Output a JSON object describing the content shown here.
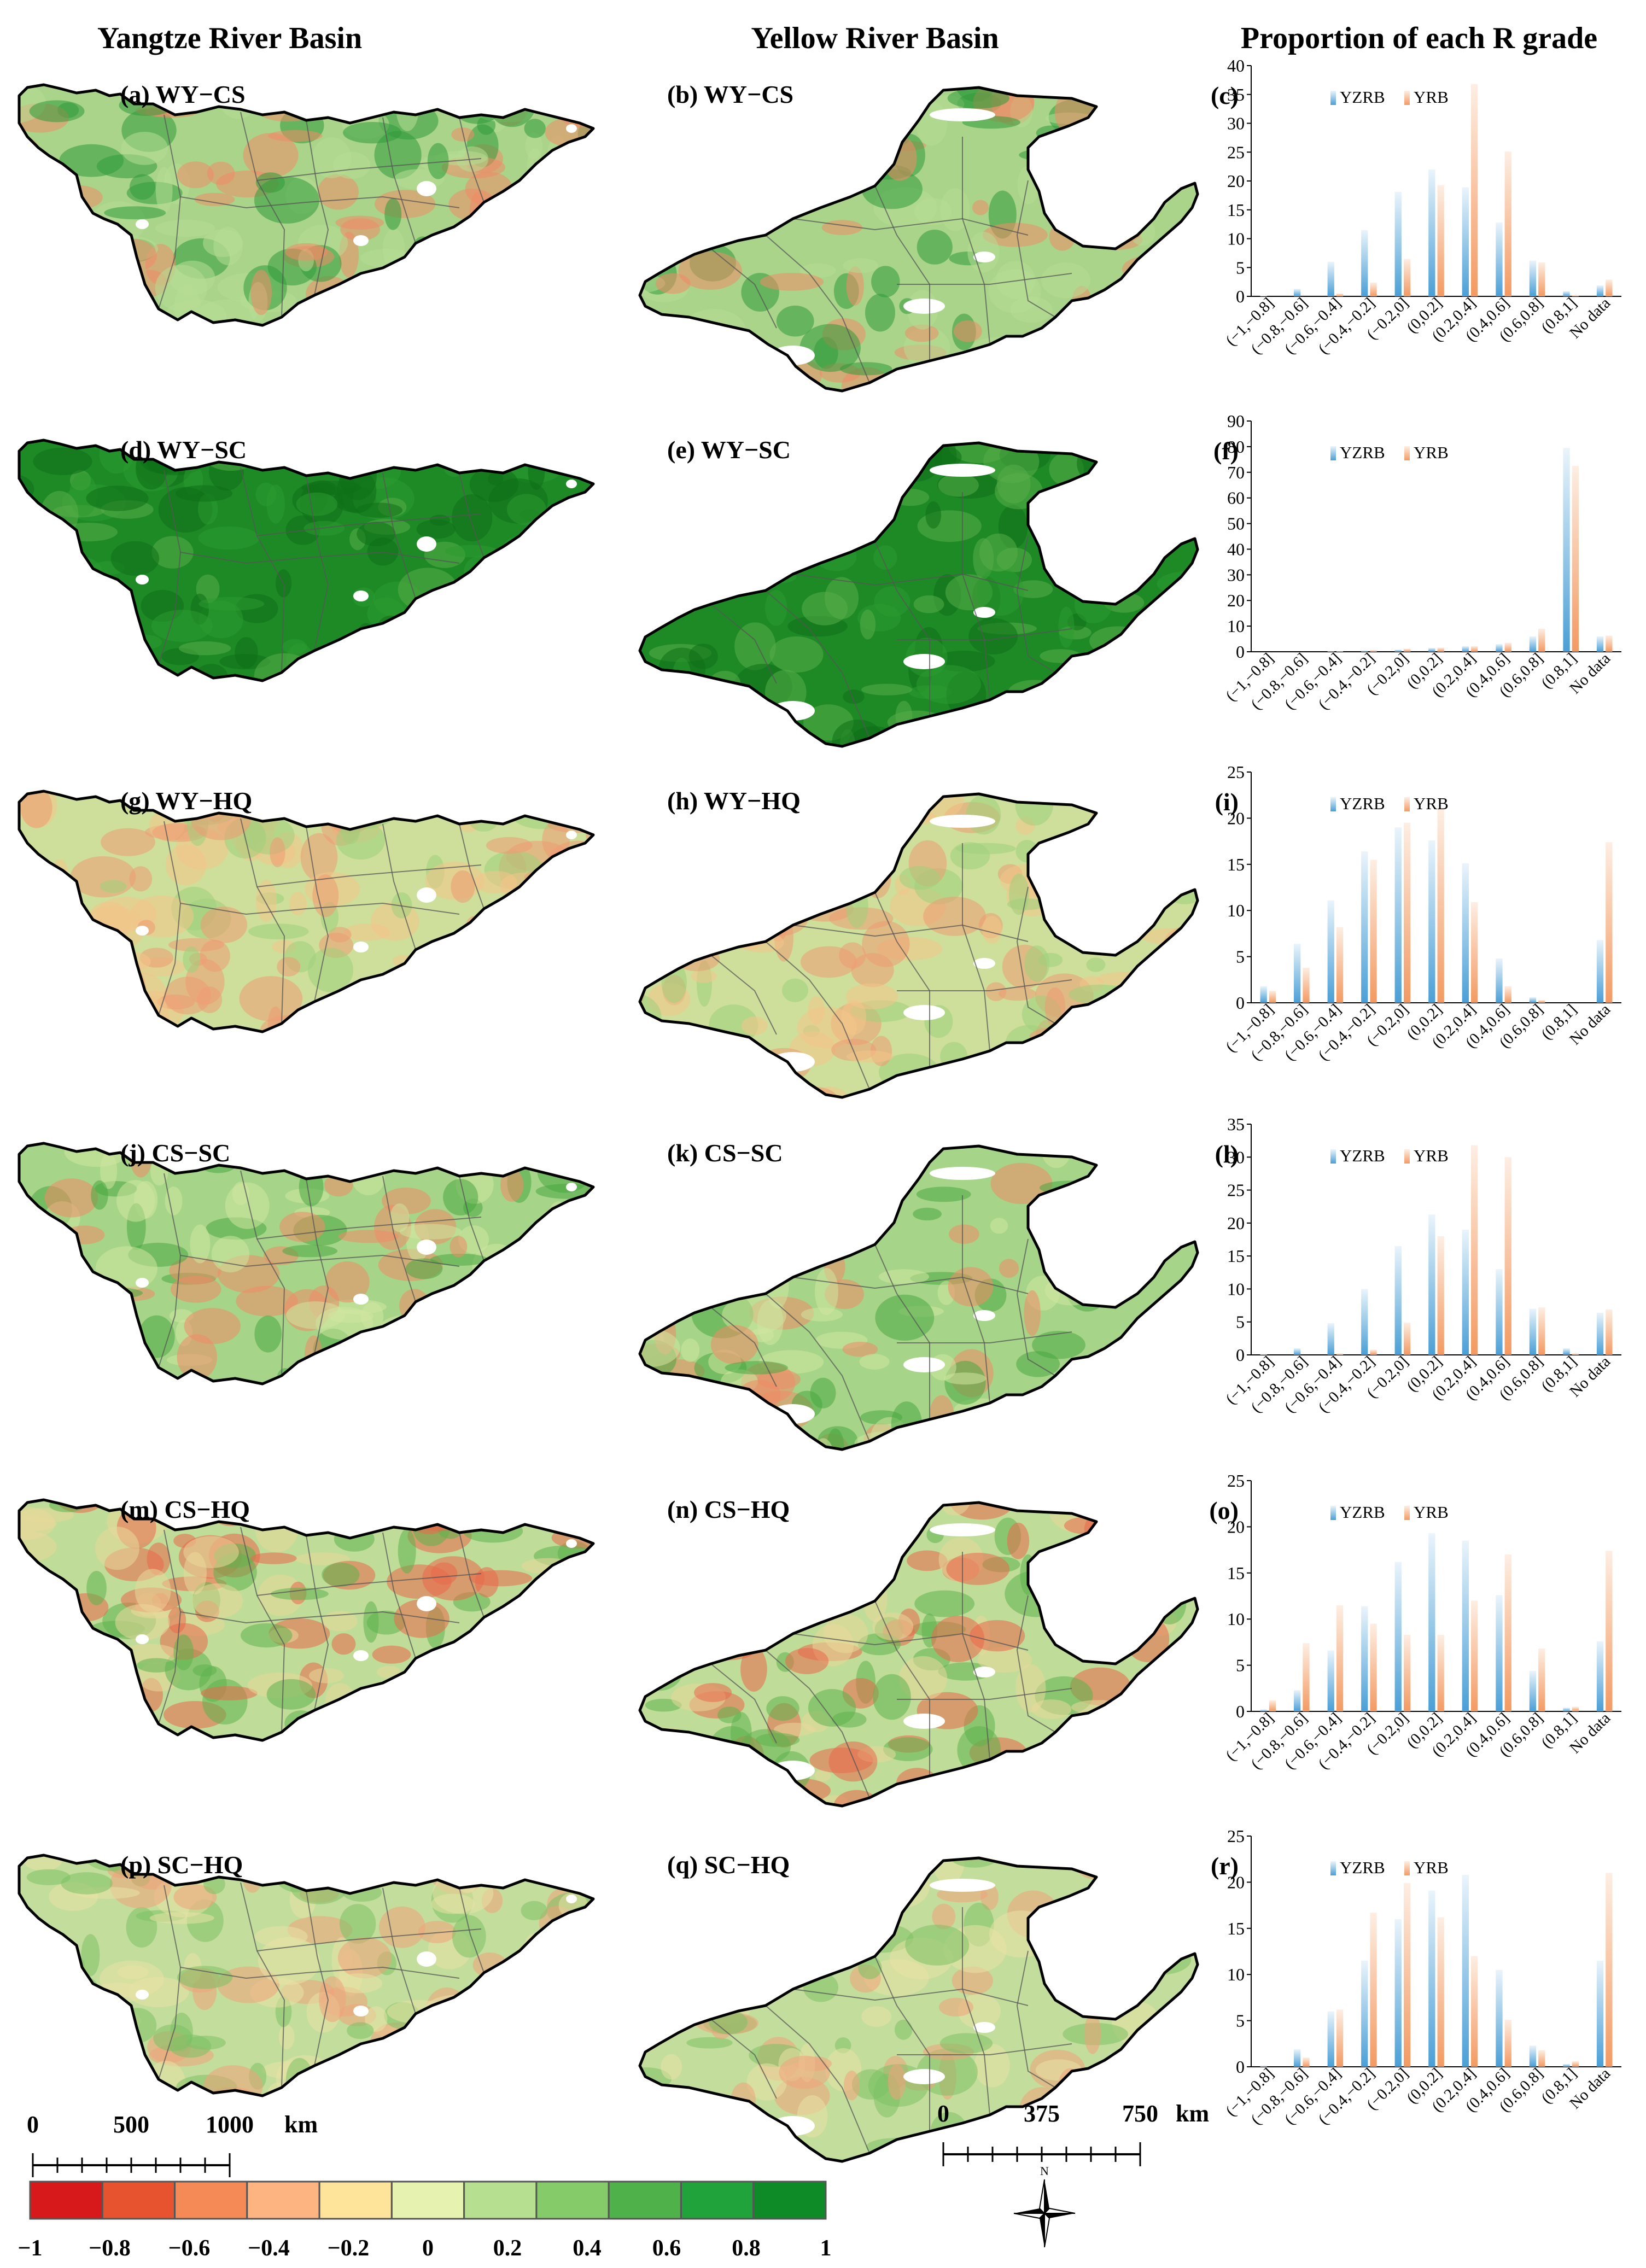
{
  "column_titles": [
    "Yangtze River Basin",
    "Yellow River Basin",
    "Proportion of each R grade"
  ],
  "panels": [
    {
      "map_yz": "(a) WY−CS",
      "map_yr": "(b) WY−CS",
      "chart": "(c)"
    },
    {
      "map_yz": "(d) WY−SC",
      "map_yr": "(e) WY−SC",
      "chart": "(f)"
    },
    {
      "map_yz": "(g) WY−HQ",
      "map_yr": "(h) WY−HQ",
      "chart": "(i)"
    },
    {
      "map_yz": "(j) CS−SC",
      "map_yr": "(k) CS−SC",
      "chart": "(l)"
    },
    {
      "map_yz": "(m) CS−HQ",
      "map_yr": "(n) CS−HQ",
      "chart": "(o)"
    },
    {
      "map_yz": "(p) SC−HQ",
      "map_yr": "(q) SC−HQ",
      "chart": "(r)"
    }
  ],
  "map_scheme": [
    {
      "bg": "#a9d48a",
      "pat": [
        "#f08a66",
        "#b7dd94",
        "#2f9a3a"
      ]
    },
    {
      "bg": "#1e8a26",
      "pat": [
        "#2b9a30",
        "#57ad48",
        "#0f6f18"
      ]
    },
    {
      "bg": "#cddf9a",
      "pat": [
        "#ee9a72",
        "#9fd07c",
        "#f4c48a"
      ]
    },
    {
      "bg": "#a6d488",
      "pat": [
        "#f08a66",
        "#49a842",
        "#cfe6a0"
      ]
    },
    {
      "bg": "#bfdc98",
      "pat": [
        "#e9684a",
        "#5fb34e",
        "#e9d89a"
      ]
    },
    {
      "bg": "#c3dd9c",
      "pat": [
        "#f0a27a",
        "#7cc165",
        "#e7e1a6"
      ]
    }
  ],
  "scale_bars": {
    "yangtze": {
      "ticks": [
        "0",
        "500",
        "1000"
      ],
      "unit": "km"
    },
    "yellow": {
      "ticks": [
        "0",
        "375",
        "750"
      ],
      "unit": "km"
    }
  },
  "colorbar": {
    "labels": [
      "−1",
      "−0.8",
      "−0.6",
      "−0.4",
      "−0.2",
      "0",
      "0.2",
      "0.4",
      "0.6",
      "0.8",
      "1"
    ],
    "colors": [
      "#d7191c",
      "#e8532f",
      "#f58a57",
      "#fdb481",
      "#fee39b",
      "#e5f2b0",
      "#b6df8f",
      "#86cb6a",
      "#4fb14a",
      "#1fa33a",
      "#0e8a26"
    ]
  },
  "north_label": "N",
  "colors": {
    "yzrb": "#4a9fd6",
    "yrb": "#f39a62"
  },
  "chart_data": [
    {
      "type": "bar",
      "panel": "(c)",
      "categories": [
        "(−1,−0.8]",
        "(−0.8,−0.6]",
        "(−0.6,−0.4]",
        "(−0.4,−0.2]",
        "(−0.2,0]",
        "(0,0.2]",
        "(0.2,0.4]",
        "(0.4,0.6]",
        "(0.6,0.8]",
        "(0.8,1]",
        "No data"
      ],
      "ylim": [
        0,
        40
      ],
      "ytick_step": 5,
      "series": [
        {
          "name": "YZRB",
          "values": [
            0.1,
            1.3,
            6.0,
            11.5,
            18.1,
            22.0,
            18.9,
            12.8,
            6.2,
            0.9,
            1.9
          ]
        },
        {
          "name": "YRB",
          "values": [
            0,
            0,
            0.5,
            2.4,
            6.5,
            19.3,
            36.8,
            25.1,
            5.9,
            0.2,
            2.9
          ]
        }
      ]
    },
    {
      "type": "bar",
      "panel": "(f)",
      "categories": [
        "(−1,−0.8]",
        "(−0.8,−0.6]",
        "(−0.6,−0.4]",
        "(−0.4,−0.2]",
        "(−0.2,0]",
        "(0,0.2]",
        "(0.2,0.4]",
        "(0.4,0.6]",
        "(0.6,0.8]",
        "(0.8,1]",
        "No data"
      ],
      "ylim": [
        0,
        90
      ],
      "ytick_step": 10,
      "series": [
        {
          "name": "YZRB",
          "values": [
            0,
            0,
            0.2,
            0.4,
            0.8,
            1.5,
            2.2,
            3.0,
            6.0,
            79.5,
            6.0
          ]
        },
        {
          "name": "YRB",
          "values": [
            0,
            0,
            0.2,
            0.6,
            1.2,
            1.6,
            2.2,
            3.5,
            9.0,
            72.5,
            6.3
          ]
        }
      ]
    },
    {
      "type": "bar",
      "panel": "(i)",
      "categories": [
        "(−1,−0.8]",
        "(−0.8,−0.6]",
        "(−0.6,−0.4]",
        "(−0.4,−0.2]",
        "(−0.2,0]",
        "(0,0.2]",
        "(0.2,0.4]",
        "(0.4,0.6]",
        "(0.6,0.8]",
        "(0.8,1]",
        "No data"
      ],
      "ylim": [
        0,
        25
      ],
      "ytick_step": 5,
      "series": [
        {
          "name": "YZRB",
          "values": [
            1.8,
            6.4,
            11.1,
            16.4,
            19.0,
            17.6,
            15.1,
            4.8,
            0.6,
            0,
            6.8
          ]
        },
        {
          "name": "YRB",
          "values": [
            1.3,
            3.8,
            8.2,
            15.5,
            19.5,
            21.0,
            10.9,
            1.8,
            0.3,
            0,
            17.4
          ]
        }
      ]
    },
    {
      "type": "bar",
      "panel": "(l)",
      "categories": [
        "(−1,−0.8]",
        "(−0.8,−0.6]",
        "(−0.6,−0.4]",
        "(−0.4,−0.2]",
        "(−0.2,0]",
        "(0,0.2]",
        "(0.2,0.4]",
        "(0.4,0.6]",
        "(0.6,0.8]",
        "(0.8,1]",
        "No data"
      ],
      "ylim": [
        0,
        35
      ],
      "ytick_step": 5,
      "series": [
        {
          "name": "YZRB",
          "values": [
            0.1,
            1.0,
            4.8,
            10.0,
            16.5,
            21.3,
            19.0,
            13.0,
            7.0,
            1.0,
            6.4
          ]
        },
        {
          "name": "YRB",
          "values": [
            0,
            0,
            0.2,
            0.8,
            4.9,
            18.0,
            31.8,
            30.0,
            7.2,
            0.2,
            6.9
          ]
        }
      ]
    },
    {
      "type": "bar",
      "panel": "(o)",
      "categories": [
        "(−1,−0.8]",
        "(−0.8,−0.6]",
        "(−0.6,−0.4]",
        "(−0.4,−0.2]",
        "(−0.2,0]",
        "(0,0.2]",
        "(0.2,0.4]",
        "(0.4,0.6]",
        "(0.6,0.8]",
        "(0.8,1]",
        "No data"
      ],
      "ylim": [
        0,
        25
      ],
      "ytick_step": 5,
      "series": [
        {
          "name": "YZRB",
          "values": [
            0.2,
            2.3,
            6.6,
            11.4,
            16.2,
            19.3,
            18.5,
            12.6,
            4.4,
            0.4,
            7.6
          ]
        },
        {
          "name": "YRB",
          "values": [
            1.2,
            7.4,
            11.5,
            9.5,
            8.3,
            8.3,
            12.0,
            17.0,
            6.8,
            0.5,
            17.4
          ]
        }
      ]
    },
    {
      "type": "bar",
      "panel": "(r)",
      "categories": [
        "(−1,−0.8]",
        "(−0.8,−0.6]",
        "(−0.6,−0.4]",
        "(−0.4,−0.2]",
        "(−0.2,0]",
        "(0,0.2]",
        "(0.2,0.4]",
        "(0.4,0.6]",
        "(0.6,0.8]",
        "(0.8,1]",
        "No data"
      ],
      "ylim": [
        0,
        25
      ],
      "ytick_step": 5,
      "series": [
        {
          "name": "YZRB",
          "values": [
            0.1,
            1.9,
            6.0,
            11.5,
            16.0,
            19.1,
            20.8,
            10.5,
            2.3,
            0.3,
            11.5
          ]
        },
        {
          "name": "YRB",
          "values": [
            0,
            1.0,
            6.2,
            16.7,
            19.9,
            16.2,
            12.0,
            5.1,
            1.8,
            0.6,
            21.0
          ]
        }
      ]
    }
  ]
}
